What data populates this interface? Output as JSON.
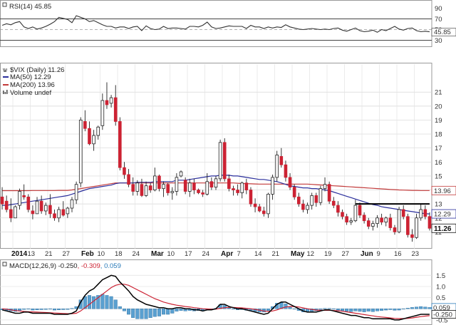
{
  "chart_data": [
    {
      "type": "line",
      "title": "RSI(14) 45.85",
      "indicator": "RSI(14)",
      "current": "45.85",
      "ylim": [
        20,
        100
      ],
      "yticks": [
        "90",
        "70",
        "50",
        "30"
      ],
      "reference_lines": [
        70,
        50,
        30
      ],
      "series": [
        {
          "name": "RSI(14)",
          "color": "#333333",
          "values": [
            58,
            61,
            59,
            63,
            65,
            55,
            52,
            55,
            51,
            53,
            56,
            60,
            65,
            73,
            71,
            69,
            63,
            76,
            73,
            70,
            65,
            67,
            63,
            59,
            56,
            56,
            53,
            55,
            55,
            52,
            55,
            56,
            48,
            57,
            52,
            50,
            51,
            56,
            52,
            53,
            53,
            52,
            51,
            56,
            56,
            55,
            58,
            64,
            55,
            52,
            53,
            55,
            57,
            56,
            56,
            56,
            52,
            58,
            55,
            55,
            52,
            55,
            53,
            55,
            54,
            59,
            55,
            53,
            51,
            50,
            51,
            52,
            51,
            50,
            51,
            50,
            52,
            53,
            49,
            47,
            50,
            53,
            48,
            46,
            47,
            49,
            45,
            50,
            48,
            52,
            56,
            51,
            49,
            52,
            53,
            48,
            46,
            47,
            45.85
          ]
        }
      ]
    },
    {
      "type": "candlestick",
      "title": "$VIX (Daily) 11.26",
      "symbol": "$VIX (Daily)",
      "last": "11.26",
      "ylim": [
        10,
        23
      ],
      "yticks": [
        "21",
        "20",
        "19",
        "18",
        "17",
        "16",
        "15",
        "14",
        "13",
        "12",
        "11"
      ],
      "xticks": [
        "2014",
        "13",
        "21",
        "27",
        "Feb",
        "10",
        "18",
        "24",
        "Mar",
        "10",
        "17",
        "24",
        "Apr",
        "7",
        "14",
        "21",
        "May",
        "12",
        "19",
        "27",
        "Jun",
        "9",
        "16",
        "23"
      ],
      "legend": [
        "MA(50) 12.29",
        "MA(200) 13.96",
        "Volume undef"
      ],
      "legend_colors": [
        "#2b2f9c",
        "#c23a3a",
        "#555555"
      ],
      "up_color": "#ffffff",
      "down_color": "#cc2233",
      "value_tags": [
        {
          "text": "13.96",
          "value": 13.96,
          "color": "#c23a3a",
          "bold": false
        },
        {
          "text": "12.29",
          "value": 12.29,
          "color": "#2b2f9c",
          "bold": false
        },
        {
          "text": "11.26",
          "value": 11.26,
          "color": "#111111",
          "bold": true
        }
      ],
      "annotation_line": {
        "value": 13.0,
        "from_index": 81,
        "to_index": 98
      },
      "ohlc": [
        [
          13.5,
          14.2,
          12.6,
          13.0
        ],
        [
          13.2,
          13.6,
          12.4,
          12.6
        ],
        [
          12.6,
          13.4,
          11.7,
          12.0
        ],
        [
          12.0,
          12.9,
          12.1,
          12.8
        ],
        [
          12.9,
          14.1,
          12.6,
          13.9
        ],
        [
          13.6,
          14.4,
          13.3,
          13.5
        ],
        [
          13.5,
          13.7,
          12.4,
          12.6
        ],
        [
          12.5,
          12.9,
          11.9,
          12.3
        ],
        [
          12.3,
          13.5,
          12.4,
          13.2
        ],
        [
          13.2,
          13.6,
          12.3,
          12.5
        ],
        [
          12.5,
          13.1,
          12.2,
          12.9
        ],
        [
          12.9,
          13.7,
          12.0,
          12.3
        ],
        [
          12.3,
          12.6,
          11.8,
          12.0
        ],
        [
          12.0,
          12.8,
          11.7,
          12.6
        ],
        [
          12.6,
          13.2,
          12.1,
          12.2
        ],
        [
          12.3,
          12.8,
          12.0,
          12.7
        ],
        [
          12.7,
          13.5,
          12.4,
          13.3
        ],
        [
          13.3,
          14.6,
          13.0,
          14.4
        ],
        [
          14.5,
          19.2,
          14.2,
          19.0
        ],
        [
          18.9,
          19.7,
          18.2,
          18.4
        ],
        [
          18.4,
          18.9,
          17.2,
          17.3
        ],
        [
          17.3,
          18.3,
          16.8,
          17.9
        ],
        [
          17.9,
          18.6,
          17.6,
          18.5
        ],
        [
          18.6,
          20.9,
          18.3,
          20.4
        ],
        [
          20.4,
          21.7,
          19.8,
          20.1
        ],
        [
          20.2,
          20.8,
          19.9,
          20.6
        ],
        [
          20.6,
          21.5,
          18.6,
          18.9
        ],
        [
          18.9,
          19.2,
          15.4,
          15.6
        ],
        [
          15.6,
          16.0,
          14.8,
          15.1
        ],
        [
          15.1,
          15.5,
          14.2,
          14.4
        ],
        [
          14.4,
          14.9,
          13.6,
          13.9
        ],
        [
          13.9,
          14.7,
          13.6,
          14.5
        ],
        [
          14.4,
          14.8,
          13.5,
          13.6
        ],
        [
          13.6,
          14.6,
          13.5,
          14.3
        ],
        [
          14.3,
          14.5,
          13.8,
          14.0
        ],
        [
          14.0,
          15.6,
          13.9,
          15.0
        ],
        [
          15.0,
          15.1,
          13.9,
          14.1
        ],
        [
          14.1,
          14.6,
          13.5,
          14.4
        ],
        [
          14.4,
          14.5,
          13.6,
          13.8
        ],
        [
          13.8,
          14.2,
          13.3,
          13.9
        ],
        [
          13.9,
          15.2,
          13.6,
          14.9
        ],
        [
          15.0,
          15.4,
          14.9,
          15.3
        ],
        [
          14.7,
          14.9,
          13.7,
          13.9
        ],
        [
          13.9,
          14.8,
          13.5,
          14.5
        ],
        [
          14.5,
          14.8,
          13.7,
          14.0
        ],
        [
          14.0,
          14.1,
          13.7,
          13.8
        ],
        [
          13.8,
          14.0,
          13.5,
          13.7
        ],
        [
          13.7,
          15.2,
          13.6,
          14.6
        ],
        [
          14.6,
          14.9,
          14.0,
          14.2
        ],
        [
          14.2,
          15.0,
          14.0,
          14.8
        ],
        [
          14.8,
          17.6,
          14.6,
          17.4
        ],
        [
          17.4,
          17.7,
          14.6,
          14.8
        ],
        [
          14.8,
          15.1,
          13.9,
          14.1
        ],
        [
          14.1,
          14.3,
          13.6,
          14.0
        ],
        [
          14.0,
          14.4,
          13.6,
          13.8
        ],
        [
          13.8,
          14.6,
          13.4,
          14.5
        ],
        [
          14.5,
          14.8,
          13.7,
          14.0
        ],
        [
          14.0,
          14.2,
          12.8,
          13.0
        ],
        [
          13.0,
          13.4,
          12.4,
          12.8
        ],
        [
          12.8,
          13.0,
          12.4,
          12.5
        ],
        [
          12.5,
          12.8,
          12.1,
          12.3
        ],
        [
          12.3,
          13.8,
          12.0,
          13.7
        ],
        [
          13.7,
          15.1,
          13.3,
          14.9
        ],
        [
          14.9,
          16.8,
          14.6,
          16.5
        ],
        [
          16.4,
          17.0,
          15.6,
          15.8
        ],
        [
          15.8,
          16.1,
          14.6,
          14.9
        ],
        [
          14.9,
          15.2,
          14.0,
          14.2
        ],
        [
          14.2,
          14.4,
          13.3,
          13.5
        ],
        [
          13.5,
          13.8,
          12.8,
          13.0
        ],
        [
          13.0,
          13.3,
          12.4,
          12.6
        ],
        [
          12.6,
          13.1,
          12.3,
          12.9
        ],
        [
          12.9,
          13.8,
          12.6,
          13.6
        ],
        [
          13.6,
          13.8,
          12.8,
          13.1
        ],
        [
          13.1,
          14.3,
          12.9,
          14.1
        ],
        [
          14.1,
          14.9,
          13.9,
          14.4
        ],
        [
          14.4,
          14.6,
          13.0,
          13.2
        ],
        [
          13.2,
          13.5,
          12.7,
          12.9
        ],
        [
          12.9,
          13.2,
          12.1,
          12.4
        ],
        [
          12.4,
          12.6,
          11.9,
          12.1
        ],
        [
          12.1,
          12.3,
          11.5,
          11.7
        ],
        [
          11.7,
          12.0,
          11.5,
          11.8
        ],
        [
          11.8,
          13.3,
          11.7,
          12.9
        ],
        [
          12.9,
          13.1,
          12.0,
          12.2
        ],
        [
          12.2,
          12.4,
          11.6,
          11.8
        ],
        [
          11.8,
          12.0,
          11.2,
          11.4
        ],
        [
          11.4,
          11.8,
          11.1,
          11.6
        ],
        [
          11.6,
          12.2,
          11.3,
          12.0
        ],
        [
          12.0,
          12.3,
          11.5,
          11.7
        ],
        [
          11.7,
          12.1,
          11.4,
          12.0
        ],
        [
          12.0,
          12.3,
          11.1,
          11.3
        ],
        [
          11.3,
          11.5,
          10.8,
          11.0
        ],
        [
          11.0,
          12.8,
          10.9,
          12.6
        ],
        [
          12.6,
          12.9,
          11.9,
          12.1
        ],
        [
          12.1,
          12.3,
          10.6,
          10.8
        ],
        [
          10.8,
          11.2,
          10.3,
          10.6
        ],
        [
          10.6,
          12.3,
          10.5,
          12.0
        ],
        [
          12.0,
          13.0,
          11.8,
          12.6
        ],
        [
          12.6,
          12.9,
          11.9,
          12.1
        ],
        [
          12.1,
          12.4,
          11.1,
          11.26
        ]
      ],
      "ma50": [
        12.9,
        12.9,
        12.95,
        13.0,
        13.05,
        13.1,
        13.15,
        13.2,
        13.25,
        13.3,
        13.35,
        13.4,
        13.45,
        13.5,
        13.55,
        13.6,
        13.7,
        13.8,
        13.9,
        14.0,
        14.1,
        14.15,
        14.2,
        14.25,
        14.3,
        14.35,
        14.45,
        14.5,
        14.5,
        14.5,
        14.5,
        14.55,
        14.55,
        14.55,
        14.55,
        14.6,
        14.6,
        14.6,
        14.6,
        14.6,
        14.7,
        14.7,
        14.7,
        14.75,
        14.8,
        14.85,
        14.9,
        14.95,
        15.0,
        15.0,
        15.05,
        15.05,
        15.05,
        15.0,
        15.0,
        14.95,
        14.9,
        14.85,
        14.8,
        14.75,
        14.75,
        14.7,
        14.65,
        14.6,
        14.5,
        14.4,
        14.3,
        14.25,
        14.2,
        14.15,
        14.15,
        14.1,
        14.1,
        14.05,
        14.0,
        13.95,
        13.85,
        13.75,
        13.65,
        13.55,
        13.45,
        13.35,
        13.25,
        13.15,
        13.05,
        12.95,
        12.9,
        12.8,
        12.75,
        12.7,
        12.65,
        12.6,
        12.55,
        12.5,
        12.45,
        12.4,
        12.35,
        12.3,
        12.29
      ],
      "ma200": [
        13.95,
        13.95,
        13.95,
        13.95,
        13.95,
        13.95,
        13.95,
        13.96,
        13.96,
        13.96,
        13.96,
        13.96,
        13.96,
        13.97,
        13.97,
        13.97,
        14.0,
        14.05,
        14.1,
        14.15,
        14.2,
        14.25,
        14.3,
        14.35,
        14.4,
        14.45,
        14.5,
        14.5,
        14.5,
        14.5,
        14.5,
        14.5,
        14.5,
        14.5,
        14.5,
        14.5,
        14.5,
        14.5,
        14.5,
        14.5,
        14.5,
        14.5,
        14.5,
        14.5,
        14.5,
        14.5,
        14.5,
        14.5,
        14.5,
        14.5,
        14.5,
        14.5,
        14.5,
        14.5,
        14.48,
        14.46,
        14.45,
        14.44,
        14.43,
        14.42,
        14.42,
        14.42,
        14.42,
        14.42,
        14.42,
        14.42,
        14.42,
        14.42,
        14.42,
        14.42,
        14.42,
        14.4,
        14.38,
        14.36,
        14.34,
        14.32,
        14.3,
        14.28,
        14.26,
        14.24,
        14.22,
        14.2,
        14.18,
        14.16,
        14.14,
        14.12,
        14.1,
        14.08,
        14.06,
        14.04,
        14.02,
        14.0,
        13.99,
        13.98,
        13.97,
        13.97,
        13.96,
        13.96,
        13.96
      ]
    },
    {
      "type": "area",
      "title": "MACD(12,26,9) -0.250, -0.309, 0.059",
      "label_macd": "MACD(12,26,9) -0.250",
      "label_signal": ", -0.309",
      "label_hist": ", 0.059",
      "ylim": [
        -0.6,
        1.7
      ],
      "yticks": [
        "1.5",
        "1.0",
        "0.5",
        "0.0",
        "-0.5"
      ],
      "value_tags": [
        {
          "text": "0.059",
          "value": 0.059,
          "color": "#2b7bb9"
        },
        {
          "text": "-0.250",
          "value": -0.25,
          "color": "#111111"
        }
      ],
      "series": [
        {
          "name": "MACD",
          "color": "#000000",
          "values": [
            -0.05,
            -0.1,
            -0.15,
            -0.2,
            -0.2,
            -0.15,
            -0.15,
            -0.2,
            -0.2,
            -0.2,
            -0.2,
            -0.2,
            -0.25,
            -0.25,
            -0.25,
            -0.25,
            -0.2,
            -0.1,
            0.3,
            0.6,
            0.8,
            0.9,
            1.1,
            1.3,
            1.4,
            1.5,
            1.45,
            1.2,
            1.0,
            0.8,
            0.55,
            0.4,
            0.3,
            0.2,
            0.15,
            0.1,
            0.05,
            0.05,
            0.0,
            0.0,
            0.05,
            0.05,
            0.0,
            0.0,
            -0.05,
            -0.05,
            -0.1,
            -0.05,
            -0.05,
            0.0,
            0.2,
            0.2,
            0.1,
            0.05,
            0.0,
            0.0,
            -0.05,
            -0.1,
            -0.15,
            -0.2,
            -0.25,
            -0.2,
            0.0,
            0.2,
            0.3,
            0.3,
            0.2,
            0.1,
            0.0,
            -0.1,
            -0.15,
            -0.15,
            -0.15,
            -0.1,
            -0.05,
            -0.05,
            -0.1,
            -0.15,
            -0.2,
            -0.25,
            -0.3,
            -0.3,
            -0.35,
            -0.4,
            -0.4,
            -0.45,
            -0.45,
            -0.45,
            -0.45,
            -0.45,
            -0.5,
            -0.5,
            -0.45,
            -0.4,
            -0.35,
            -0.3,
            -0.25,
            -0.25,
            -0.25
          ]
        },
        {
          "name": "Signal",
          "color": "#cc2233",
          "values": [
            0.0,
            -0.02,
            -0.05,
            -0.08,
            -0.1,
            -0.12,
            -0.13,
            -0.14,
            -0.15,
            -0.16,
            -0.17,
            -0.18,
            -0.19,
            -0.2,
            -0.21,
            -0.22,
            -0.22,
            -0.2,
            -0.1,
            0.05,
            0.2,
            0.35,
            0.5,
            0.65,
            0.8,
            0.95,
            1.05,
            1.1,
            1.1,
            1.05,
            0.95,
            0.85,
            0.75,
            0.65,
            0.55,
            0.45,
            0.38,
            0.3,
            0.25,
            0.2,
            0.16,
            0.13,
            0.1,
            0.08,
            0.05,
            0.03,
            0.0,
            -0.01,
            -0.02,
            -0.02,
            0.02,
            0.05,
            0.06,
            0.06,
            0.05,
            0.04,
            0.02,
            0.0,
            -0.03,
            -0.06,
            -0.1,
            -0.12,
            -0.1,
            -0.05,
            0.02,
            0.08,
            0.1,
            0.1,
            0.08,
            0.04,
            0.0,
            -0.03,
            -0.06,
            -0.07,
            -0.07,
            -0.07,
            -0.08,
            -0.09,
            -0.11,
            -0.14,
            -0.17,
            -0.2,
            -0.23,
            -0.26,
            -0.29,
            -0.32,
            -0.35,
            -0.37,
            -0.39,
            -0.41,
            -0.43,
            -0.44,
            -0.44,
            -0.43,
            -0.41,
            -0.38,
            -0.35,
            -0.33,
            -0.309
          ]
        }
      ]
    }
  ]
}
